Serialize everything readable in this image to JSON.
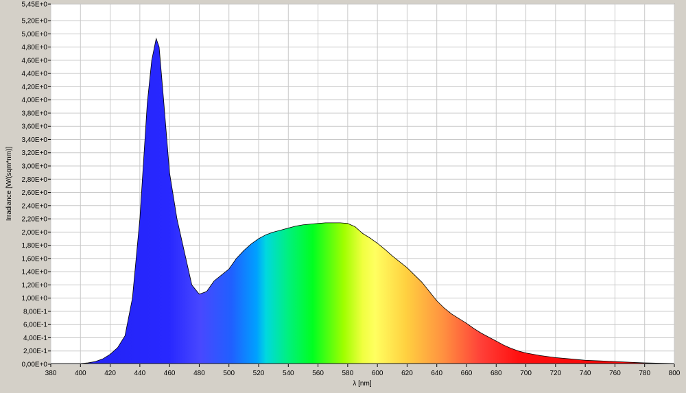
{
  "chart_data": {
    "type": "area",
    "x_label": "λ [nm]",
    "y_label": "Irradiance [W/(sqm*nm)]",
    "xlim": [
      380,
      800
    ],
    "xticks": [
      380,
      400,
      420,
      440,
      460,
      480,
      500,
      520,
      540,
      560,
      580,
      600,
      620,
      640,
      660,
      680,
      700,
      720,
      740,
      760,
      780,
      800
    ],
    "ylim": [
      0,
      5.45
    ],
    "yticks": [
      {
        "value": 0,
        "label": "0,00E+0"
      },
      {
        "value": 0.2,
        "label": "2,00E-1"
      },
      {
        "value": 0.4,
        "label": "4,00E-1"
      },
      {
        "value": 0.6,
        "label": "6,00E-1"
      },
      {
        "value": 0.8,
        "label": "8,00E-1"
      },
      {
        "value": 1.0,
        "label": "1,00E+0"
      },
      {
        "value": 1.2,
        "label": "1,20E+0"
      },
      {
        "value": 1.4,
        "label": "1,40E+0"
      },
      {
        "value": 1.6,
        "label": "1,60E+0"
      },
      {
        "value": 1.8,
        "label": "1,80E+0"
      },
      {
        "value": 2.0,
        "label": "2,00E+0"
      },
      {
        "value": 2.2,
        "label": "2,20E+0"
      },
      {
        "value": 2.4,
        "label": "2,40E+0"
      },
      {
        "value": 2.6,
        "label": "2,60E+0"
      },
      {
        "value": 2.8,
        "label": "2,80E+0"
      },
      {
        "value": 3.0,
        "label": "3,00E+0"
      },
      {
        "value": 3.2,
        "label": "3,20E+0"
      },
      {
        "value": 3.4,
        "label": "3,40E+0"
      },
      {
        "value": 3.6,
        "label": "3,60E+0"
      },
      {
        "value": 3.8,
        "label": "3,80E+0"
      },
      {
        "value": 4.0,
        "label": "4,00E+0"
      },
      {
        "value": 4.2,
        "label": "4,20E+0"
      },
      {
        "value": 4.4,
        "label": "4,40E+0"
      },
      {
        "value": 4.6,
        "label": "4,60E+0"
      },
      {
        "value": 4.8,
        "label": "4,80E+0"
      },
      {
        "value": 5.0,
        "label": "5,00E+0"
      },
      {
        "value": 5.2,
        "label": "5,20E+0"
      },
      {
        "value": 5.45,
        "label": "5,45E+0"
      }
    ],
    "grid": true,
    "x": [
      380,
      385,
      390,
      395,
      400,
      405,
      410,
      415,
      420,
      425,
      430,
      435,
      440,
      445,
      448,
      451,
      453,
      456,
      460,
      465,
      470,
      475,
      480,
      485,
      490,
      495,
      500,
      505,
      510,
      515,
      520,
      525,
      530,
      535,
      540,
      545,
      550,
      555,
      560,
      565,
      570,
      575,
      580,
      585,
      590,
      595,
      600,
      605,
      610,
      615,
      620,
      625,
      630,
      635,
      640,
      645,
      650,
      655,
      660,
      665,
      670,
      675,
      680,
      685,
      690,
      695,
      700,
      710,
      720,
      730,
      740,
      750,
      760,
      770,
      780,
      790,
      800
    ],
    "values": [
      0.01,
      0.01,
      0.01,
      0.01,
      0.01,
      0.02,
      0.04,
      0.08,
      0.15,
      0.25,
      0.43,
      1.0,
      2.2,
      3.95,
      4.6,
      4.93,
      4.8,
      4.0,
      2.9,
      2.2,
      1.7,
      1.2,
      1.06,
      1.1,
      1.26,
      1.35,
      1.44,
      1.6,
      1.72,
      1.82,
      1.9,
      1.96,
      2.0,
      2.03,
      2.06,
      2.09,
      2.11,
      2.12,
      2.13,
      2.14,
      2.14,
      2.14,
      2.13,
      2.08,
      1.98,
      1.91,
      1.83,
      1.74,
      1.64,
      1.55,
      1.46,
      1.35,
      1.24,
      1.1,
      0.96,
      0.85,
      0.76,
      0.69,
      0.62,
      0.54,
      0.47,
      0.41,
      0.35,
      0.29,
      0.24,
      0.2,
      0.17,
      0.13,
      0.1,
      0.08,
      0.06,
      0.05,
      0.04,
      0.03,
      0.02,
      0.015,
      0.01
    ]
  }
}
